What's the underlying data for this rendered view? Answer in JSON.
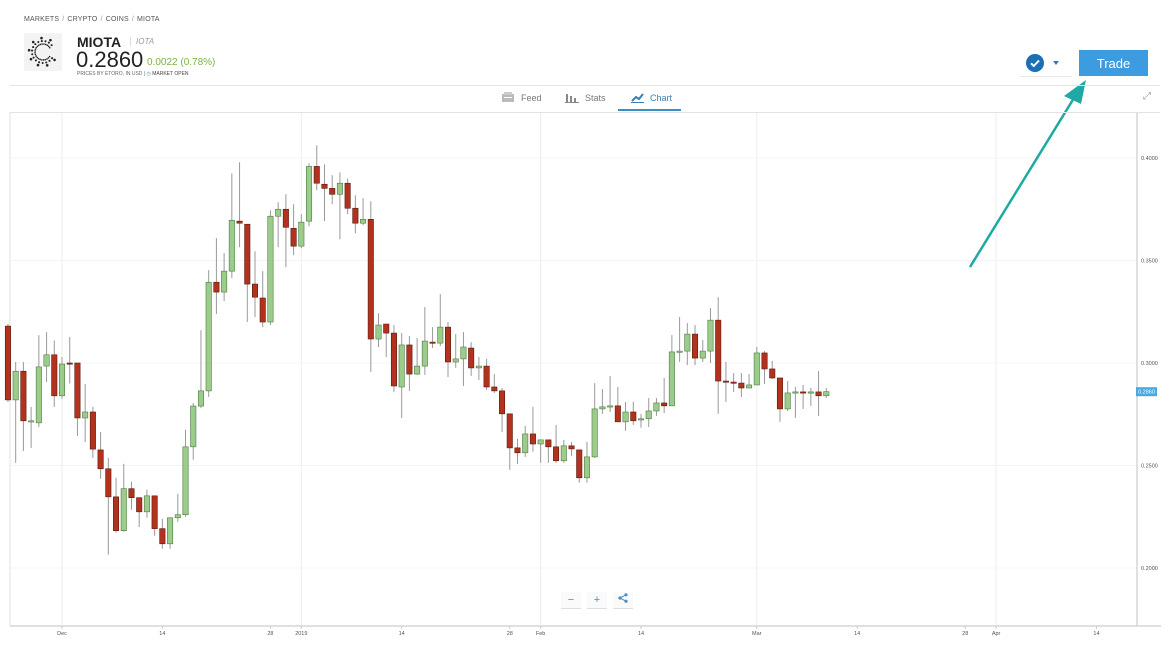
{
  "breadcrumb": [
    "MARKETS",
    "CRYPTO",
    "COINS",
    "MIOTA"
  ],
  "instrument": {
    "symbol": "MIOTA",
    "name": "IOTA",
    "price": "0.2860",
    "change": "0.0022 (0.78%)",
    "price_source": "PRICES BY ETORO, IN USD |",
    "market_status": "MARKET OPEN",
    "logo_icon": "iota-logo-icon"
  },
  "actions": {
    "trade_label": "Trade",
    "check_icon": "check-circle-icon",
    "dropdown_icon": "caret-down-icon"
  },
  "tabs": [
    {
      "label": "Feed",
      "icon": "feed-icon",
      "active": false
    },
    {
      "label": "Stats",
      "icon": "bar-chart-icon",
      "active": false
    },
    {
      "label": "Chart",
      "icon": "line-chart-icon",
      "active": true
    }
  ],
  "colors": {
    "accent": "#3d9be0",
    "up": "#9ccc8a",
    "down": "#b3321d",
    "arrow": "#1ea9a4",
    "change": "#7cb342"
  },
  "zoom_controls": {
    "minus": "−",
    "plus": "+",
    "share_icon": "share-icon"
  },
  "chart_data": {
    "type": "candlestick",
    "current_price_label": "0.2860",
    "ylim": [
      0.1717,
      0.4224
    ],
    "y_ticks": [
      "0.2000",
      "0.2500",
      "0.3000",
      "0.3500",
      "0.4000"
    ],
    "x_ticks": [
      {
        "label": "Dec",
        "date": "2018-12-01"
      },
      {
        "label": "14",
        "date": "2018-12-14"
      },
      {
        "label": "28",
        "date": "2018-12-28"
      },
      {
        "label": "2019",
        "date": "2019-01-01"
      },
      {
        "label": "14",
        "date": "2019-01-14"
      },
      {
        "label": "28",
        "date": "2019-01-28"
      },
      {
        "label": "Feb",
        "date": "2019-02-01"
      },
      {
        "label": "14",
        "date": "2019-02-14"
      },
      {
        "label": "Mar",
        "date": "2019-03-01"
      },
      {
        "label": "14",
        "date": "2019-03-14"
      },
      {
        "label": "28",
        "date": "2019-03-28"
      },
      {
        "label": "Apr",
        "date": "2019-04-01"
      },
      {
        "label": "14",
        "date": "2019-04-14"
      }
    ],
    "grid_months": [
      "2018-12-01",
      "2019-01-01",
      "2019-02-01",
      "2019-03-01",
      "2019-04-01"
    ],
    "candles_fields": [
      "date",
      "open",
      "high",
      "low",
      "close"
    ],
    "candles": [
      [
        "2018-11-24",
        0.318,
        0.319,
        0.281,
        0.282
      ],
      [
        "2018-11-25",
        0.282,
        0.3005,
        0.2513,
        0.296
      ],
      [
        "2018-11-26",
        0.296,
        0.3005,
        0.2571,
        0.2718
      ],
      [
        "2018-11-27",
        0.2713,
        0.2786,
        0.2586,
        0.2718
      ],
      [
        "2018-11-28",
        0.2708,
        0.3136,
        0.2688,
        0.2981
      ],
      [
        "2018-11-29",
        0.2985,
        0.315,
        0.2907,
        0.304
      ],
      [
        "2018-11-30",
        0.304,
        0.311,
        0.2786,
        0.284
      ],
      [
        "2018-12-01",
        0.284,
        0.303,
        0.2825,
        0.2995
      ],
      [
        "2018-12-02",
        0.3,
        0.3127,
        0.29,
        0.2995
      ],
      [
        "2018-12-03",
        0.3,
        0.3,
        0.2644,
        0.2732
      ],
      [
        "2018-12-04",
        0.2732,
        0.2898,
        0.2615,
        0.2761
      ],
      [
        "2018-12-05",
        0.2761,
        0.2786,
        0.2537,
        0.258
      ],
      [
        "2018-12-06",
        0.2576,
        0.2664,
        0.2435,
        0.2484
      ],
      [
        "2018-12-07",
        0.2484,
        0.2537,
        0.2065,
        0.2347
      ],
      [
        "2018-12-08",
        0.2347,
        0.244,
        0.2172,
        0.2182
      ],
      [
        "2018-12-09",
        0.2182,
        0.2508,
        0.2177,
        0.2387
      ],
      [
        "2018-12-10",
        0.2387,
        0.2421,
        0.2284,
        0.2343
      ],
      [
        "2018-12-11",
        0.2343,
        0.2343,
        0.22,
        0.2274
      ],
      [
        "2018-12-12",
        0.2274,
        0.2382,
        0.2245,
        0.2352
      ],
      [
        "2018-12-13",
        0.2352,
        0.2352,
        0.2157,
        0.2192
      ],
      [
        "2018-12-14",
        0.2192,
        0.224,
        0.2094,
        0.2118
      ],
      [
        "2018-12-15",
        0.2118,
        0.2245,
        0.2094,
        0.2245
      ],
      [
        "2018-12-16",
        0.2245,
        0.2362,
        0.2226,
        0.226
      ],
      [
        "2018-12-17",
        0.226,
        0.2674,
        0.225,
        0.2591
      ],
      [
        "2018-12-18",
        0.2591,
        0.2805,
        0.2528,
        0.279
      ],
      [
        "2018-12-19",
        0.279,
        0.316,
        0.2781,
        0.2864
      ],
      [
        "2018-12-20",
        0.2864,
        0.3453,
        0.2834,
        0.3394
      ],
      [
        "2018-12-21",
        0.3394,
        0.3609,
        0.3239,
        0.3346
      ],
      [
        "2018-12-22",
        0.3346,
        0.3536,
        0.3302,
        0.3448
      ],
      [
        "2018-12-23",
        0.3448,
        0.3925,
        0.3414,
        0.3696
      ],
      [
        "2018-12-24",
        0.3692,
        0.3979,
        0.3565,
        0.3682
      ],
      [
        "2018-12-25",
        0.3677,
        0.3677,
        0.32,
        0.3385
      ],
      [
        "2018-12-26",
        0.3385,
        0.3545,
        0.3224,
        0.3321
      ],
      [
        "2018-12-27",
        0.3317,
        0.3448,
        0.3175,
        0.32
      ],
      [
        "2018-12-28",
        0.32,
        0.3745,
        0.3185,
        0.3716
      ],
      [
        "2018-12-29",
        0.3716,
        0.3784,
        0.3565,
        0.375
      ],
      [
        "2018-12-30",
        0.375,
        0.3823,
        0.3467,
        0.3662
      ],
      [
        "2018-12-31",
        0.3657,
        0.3774,
        0.3526,
        0.357
      ],
      [
        "2019-01-01",
        0.357,
        0.3726,
        0.356,
        0.3687
      ],
      [
        "2019-01-02",
        0.3692,
        0.3974,
        0.3667,
        0.3959
      ],
      [
        "2019-01-03",
        0.3959,
        0.4062,
        0.3843,
        0.3877
      ],
      [
        "2019-01-04",
        0.3872,
        0.3969,
        0.3692,
        0.3852
      ],
      [
        "2019-01-05",
        0.3852,
        0.3916,
        0.3774,
        0.3823
      ],
      [
        "2019-01-06",
        0.3823,
        0.393,
        0.3604,
        0.3877
      ],
      [
        "2019-01-07",
        0.3877,
        0.39,
        0.3726,
        0.3755
      ],
      [
        "2019-01-08",
        0.3755,
        0.3818,
        0.3633,
        0.3682
      ],
      [
        "2019-01-09",
        0.3682,
        0.3804,
        0.3672,
        0.3701
      ],
      [
        "2019-01-10",
        0.3701,
        0.3789,
        0.2956,
        0.3117
      ],
      [
        "2019-01-11",
        0.3117,
        0.3243,
        0.3078,
        0.3185
      ],
      [
        "2019-01-12",
        0.319,
        0.319,
        0.3029,
        0.3146
      ],
      [
        "2019-01-13",
        0.3146,
        0.3185,
        0.2859,
        0.2888
      ],
      [
        "2019-01-14",
        0.2883,
        0.3146,
        0.2732,
        0.3088
      ],
      [
        "2019-01-15",
        0.3088,
        0.3132,
        0.2864,
        0.2946
      ],
      [
        "2019-01-16",
        0.2946,
        0.3122,
        0.2942,
        0.2985
      ],
      [
        "2019-01-17",
        0.2985,
        0.3273,
        0.2942,
        0.3107
      ],
      [
        "2019-01-18",
        0.3102,
        0.3175,
        0.3073,
        0.3097
      ],
      [
        "2019-01-19",
        0.3097,
        0.3336,
        0.3083,
        0.3175
      ],
      [
        "2019-01-20",
        0.3175,
        0.32,
        0.2932,
        0.3005
      ],
      [
        "2019-01-21",
        0.3005,
        0.3141,
        0.2976,
        0.302
      ],
      [
        "2019-01-22",
        0.302,
        0.3151,
        0.2888,
        0.3078
      ],
      [
        "2019-01-23",
        0.3073,
        0.3102,
        0.2937,
        0.2976
      ],
      [
        "2019-01-24",
        0.2976,
        0.3029,
        0.2917,
        0.2985
      ],
      [
        "2019-01-25",
        0.2985,
        0.302,
        0.2868,
        0.2883
      ],
      [
        "2019-01-26",
        0.2883,
        0.2946,
        0.2854,
        0.2864
      ],
      [
        "2019-01-27",
        0.2864,
        0.2878,
        0.2664,
        0.2752
      ],
      [
        "2019-01-28",
        0.2752,
        0.2752,
        0.2479,
        0.2586
      ],
      [
        "2019-01-29",
        0.2586,
        0.263,
        0.2508,
        0.2562
      ],
      [
        "2019-01-30",
        0.2562,
        0.2693,
        0.2542,
        0.2654
      ],
      [
        "2019-01-31",
        0.2654,
        0.2786,
        0.2567,
        0.2605
      ],
      [
        "2019-02-01",
        0.2605,
        0.2625,
        0.2513,
        0.2625
      ],
      [
        "2019-02-02",
        0.2625,
        0.2625,
        0.2513,
        0.2591
      ],
      [
        "2019-02-03",
        0.2591,
        0.2698,
        0.2513,
        0.2523
      ],
      [
        "2019-02-04",
        0.2523,
        0.2625,
        0.2513,
        0.2596
      ],
      [
        "2019-02-05",
        0.2596,
        0.2615,
        0.2547,
        0.2581
      ],
      [
        "2019-02-06",
        0.2576,
        0.2576,
        0.2416,
        0.244
      ],
      [
        "2019-02-07",
        0.244,
        0.2615,
        0.2416,
        0.2542
      ],
      [
        "2019-02-08",
        0.2542,
        0.2902,
        0.2537,
        0.2776
      ],
      [
        "2019-02-09",
        0.2776,
        0.2873,
        0.2752,
        0.2786
      ],
      [
        "2019-02-10",
        0.2786,
        0.2937,
        0.2761,
        0.2791
      ],
      [
        "2019-02-11",
        0.2791,
        0.2883,
        0.2713,
        0.2713
      ],
      [
        "2019-02-12",
        0.2713,
        0.281,
        0.2669,
        0.2761
      ],
      [
        "2019-02-13",
        0.2761,
        0.281,
        0.2698,
        0.2718
      ],
      [
        "2019-02-14",
        0.2723,
        0.2752,
        0.2684,
        0.2728
      ],
      [
        "2019-02-15",
        0.2728,
        0.2829,
        0.2688,
        0.2766
      ],
      [
        "2019-02-16",
        0.2766,
        0.2829,
        0.2742,
        0.2805
      ],
      [
        "2019-02-17",
        0.2805,
        0.2927,
        0.2756,
        0.2791
      ],
      [
        "2019-02-18",
        0.2791,
        0.3136,
        0.2791,
        0.3054
      ],
      [
        "2019-02-19",
        0.3054,
        0.3224,
        0.3005,
        0.3058
      ],
      [
        "2019-02-20",
        0.3058,
        0.3195,
        0.299,
        0.3141
      ],
      [
        "2019-02-21",
        0.3141,
        0.3185,
        0.299,
        0.3024
      ],
      [
        "2019-02-22",
        0.3024,
        0.3112,
        0.3005,
        0.3058
      ],
      [
        "2019-02-23",
        0.3058,
        0.3268,
        0.3,
        0.3209
      ],
      [
        "2019-02-24",
        0.3209,
        0.3321,
        0.2752,
        0.2912
      ],
      [
        "2019-02-25",
        0.2912,
        0.3005,
        0.281,
        0.2907
      ],
      [
        "2019-02-26",
        0.2907,
        0.2951,
        0.2859,
        0.2902
      ],
      [
        "2019-02-27",
        0.2902,
        0.2951,
        0.2834,
        0.2878
      ],
      [
        "2019-02-28",
        0.2878,
        0.2946,
        0.2878,
        0.2893
      ],
      [
        "2019-03-01",
        0.2893,
        0.3078,
        0.2893,
        0.3049
      ],
      [
        "2019-03-02",
        0.3049,
        0.3058,
        0.2898,
        0.2971
      ],
      [
        "2019-03-03",
        0.2971,
        0.301,
        0.2922,
        0.2927
      ],
      [
        "2019-03-04",
        0.2927,
        0.2927,
        0.2713,
        0.2776
      ],
      [
        "2019-03-05",
        0.2776,
        0.2912,
        0.2766,
        0.2854
      ],
      [
        "2019-03-06",
        0.2854,
        0.2883,
        0.2732,
        0.2859
      ],
      [
        "2019-03-07",
        0.2859,
        0.2893,
        0.2776,
        0.2854
      ],
      [
        "2019-03-08",
        0.2854,
        0.2878,
        0.2791,
        0.2859
      ],
      [
        "2019-03-09",
        0.2859,
        0.2961,
        0.2742,
        0.284
      ],
      [
        "2019-03-10",
        0.284,
        0.2878,
        0.2829,
        0.286
      ]
    ]
  }
}
